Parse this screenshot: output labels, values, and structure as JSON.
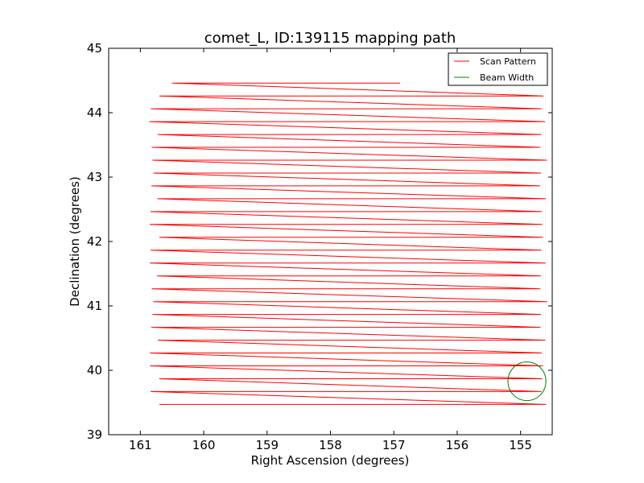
{
  "chart_data": {
    "type": "line",
    "title": "comet_L, ID:139115 mapping path",
    "xlabel": "Right Ascension (degrees)",
    "ylabel": "Declination (degrees)",
    "xlim": [
      161.5,
      154.5
    ],
    "ylim": [
      39,
      45
    ],
    "xticks": [
      161,
      160,
      159,
      158,
      157,
      156,
      155
    ],
    "yticks": [
      39,
      40,
      41,
      42,
      43,
      44,
      45
    ],
    "grid": false,
    "legend_position": "upper right",
    "series": [
      {
        "name": "Scan Pattern",
        "color": "#ff0000",
        "scan": {
          "start_dec": 39.47,
          "end_dec": 44.46,
          "rows": 26,
          "low_ra_end": 154.65,
          "high_ra_end": 160.8,
          "first_row_start_ra": 160.7,
          "last_row_end_ra": 160.5,
          "stop_ra": 156.9
        }
      },
      {
        "name": "Beam Width",
        "color": "#008000",
        "circle": {
          "center_ra": 154.9,
          "center_dec": 39.83,
          "radius_deg": 0.3
        }
      }
    ]
  }
}
